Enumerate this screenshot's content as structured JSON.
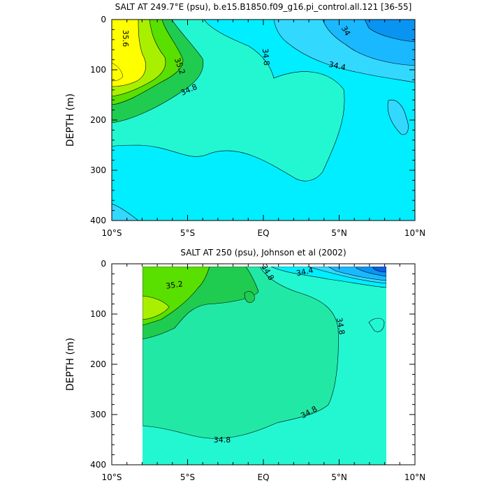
{
  "chart_data": [
    {
      "type": "contour",
      "title": "SALT AT 249.7°E (psu), b.e15.B1850.f09_g16.pi_control.all.121 [36-55]",
      "xlabel": "",
      "ylabel": "DEPTH (m)",
      "x_ticks": [
        "10°S",
        "5°S",
        "EQ",
        "5°N",
        "10°N"
      ],
      "y_ticks": [
        "0",
        "100",
        "200",
        "300",
        "400"
      ],
      "xlim": [
        -10,
        10
      ],
      "ylim": [
        400,
        0
      ],
      "contour_interval": 0.2,
      "contour_labels": [
        "35.6",
        "35.2",
        "34.8",
        "34.8",
        "34.4",
        "34"
      ],
      "colors": [
        "#ffff00",
        "#a8f000",
        "#59df00",
        "#20cc50",
        "#22e8a6",
        "#23f7d2",
        "#00eeff",
        "#33d8ff",
        "#1ab8ff",
        "#0a94f2"
      ]
    },
    {
      "type": "contour",
      "title": "SALT AT 250 (psu), Johnson et al (2002)",
      "xlabel": "",
      "ylabel": "DEPTH (m)",
      "x_ticks": [
        "10°S",
        "5°S",
        "EQ",
        "5°N",
        "10°N"
      ],
      "y_ticks": [
        "0",
        "100",
        "200",
        "300",
        "400"
      ],
      "xlim": [
        -10,
        10
      ],
      "ylim": [
        400,
        0
      ],
      "data_extent_x": [
        -8,
        8.2
      ],
      "data_extent_y": [
        5,
        400
      ],
      "contour_interval": 0.2,
      "contour_labels": [
        "35.2",
        "34.8",
        "34.4",
        "34.8",
        "34.8",
        "34.8"
      ],
      "colors": [
        "#a8f000",
        "#59df00",
        "#20cc50",
        "#22e8a6",
        "#23f7d2",
        "#00eeff",
        "#1ab8ff",
        "#0a60e8"
      ]
    }
  ]
}
